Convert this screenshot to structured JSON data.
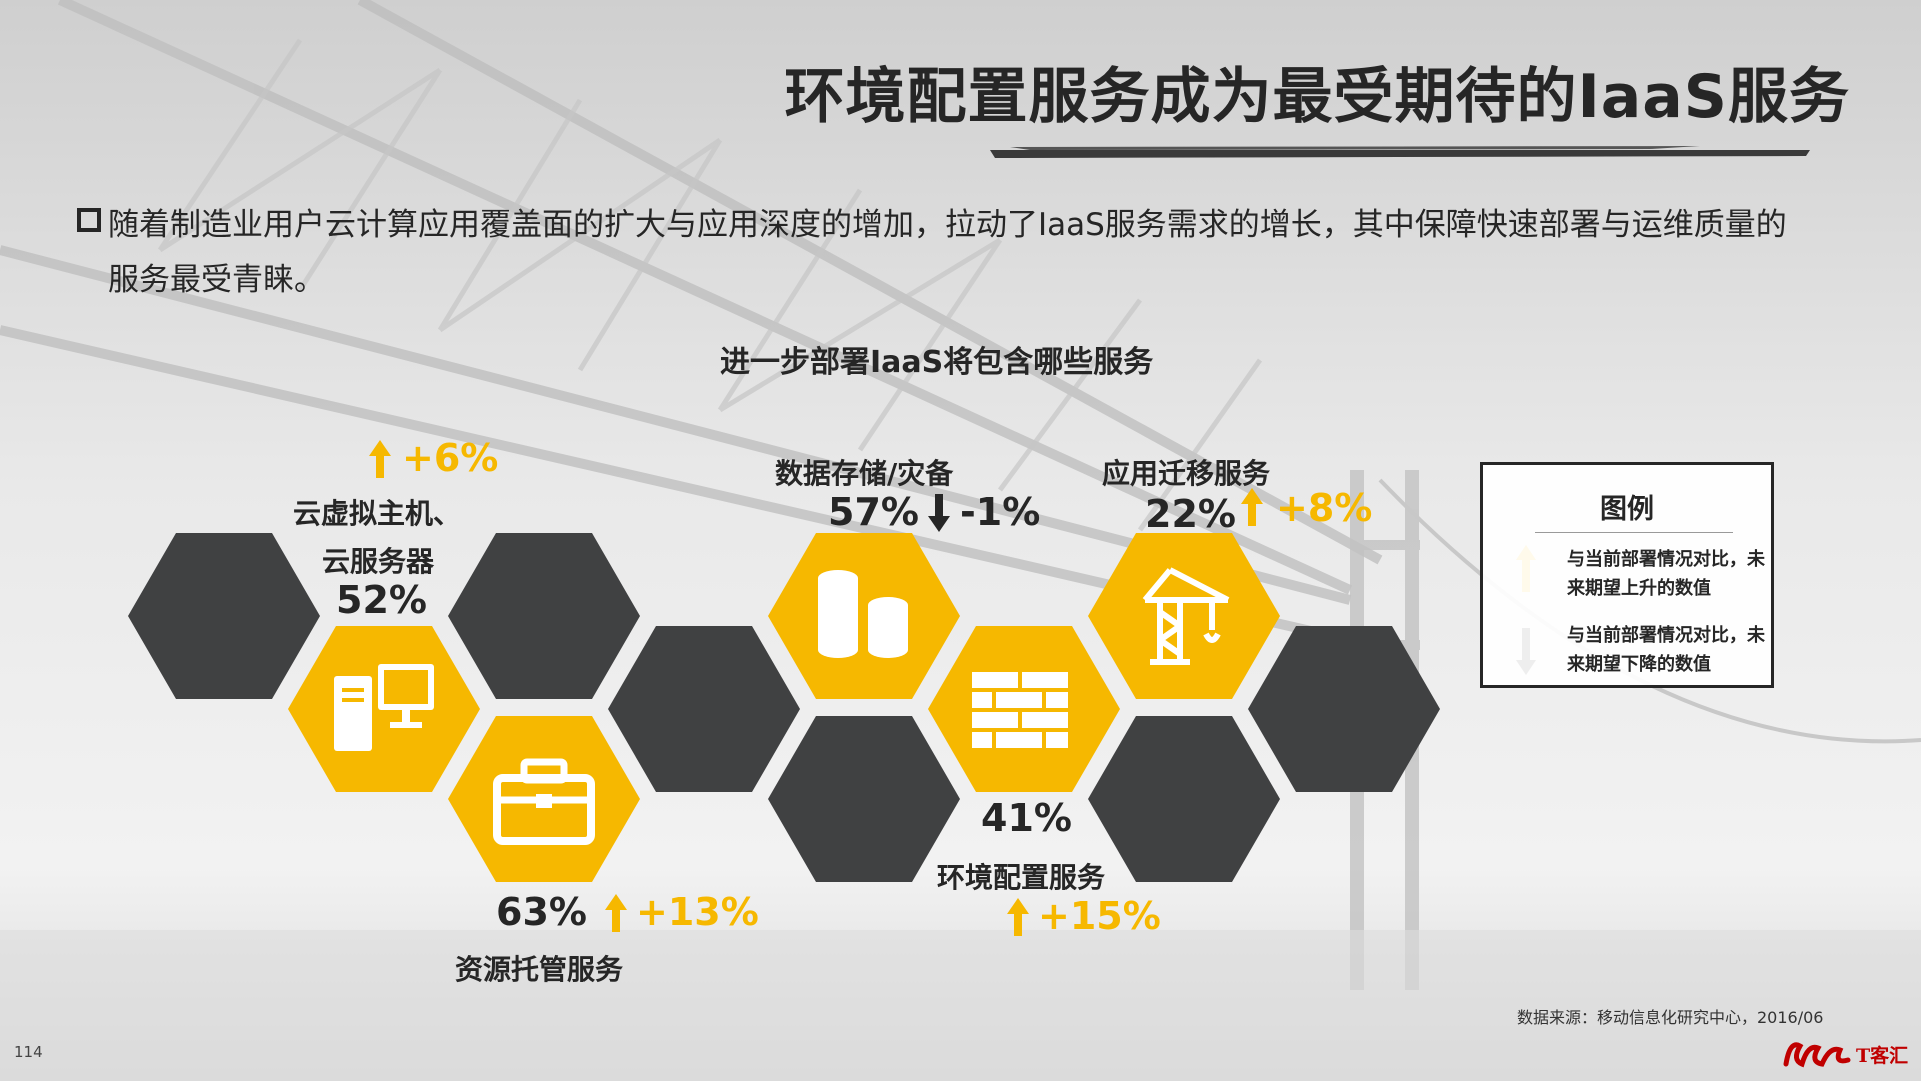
{
  "title": "环境配置服务成为最受期待的IaaS服务",
  "intro": {
    "line1": "随着制造业用户云计算应用覆盖面的扩大与应用深度的增加，拉动了IaaS服务需求的增长，其中保障快速部署与运维质量的",
    "line2": "服务最受青睐。"
  },
  "chart_data": {
    "type": "table",
    "title": "进一步部署IaaS将包含哪些服务",
    "items": [
      {
        "label_lines": [
          "云虚拟主机、",
          "云服务器"
        ],
        "percent": "52%",
        "change": "+6%",
        "direction": "up",
        "icon": "server-computer-icon"
      },
      {
        "label_lines": [
          "资源托管服务"
        ],
        "percent": "63%",
        "change": "+13%",
        "direction": "up",
        "icon": "briefcase-icon"
      },
      {
        "label_lines": [
          "数据存储/灾备"
        ],
        "percent": "57%",
        "change": "-1%",
        "direction": "down",
        "icon": "database-cylinders-icon"
      },
      {
        "label_lines": [
          "环境配置服务"
        ],
        "percent": "41%",
        "change": "+15%",
        "direction": "up",
        "icon": "brick-wall-icon"
      },
      {
        "label_lines": [
          "应用迁移服务"
        ],
        "percent": "22%",
        "change": "+8%",
        "direction": "up",
        "icon": "construction-crane-icon"
      }
    ]
  },
  "legend": {
    "title": "图例",
    "up_text": "与当前部署情况对比，未来期望上升的数值",
    "down_text": "与当前部署情况对比，未来期望下降的数值"
  },
  "source": "数据来源：移动信息化研究中心，2016/06",
  "page_number": "114",
  "logo_text": "T客汇",
  "colors": {
    "hex_dark": "#404142",
    "hex_yellow": "#f6b800",
    "text": "#262626"
  }
}
